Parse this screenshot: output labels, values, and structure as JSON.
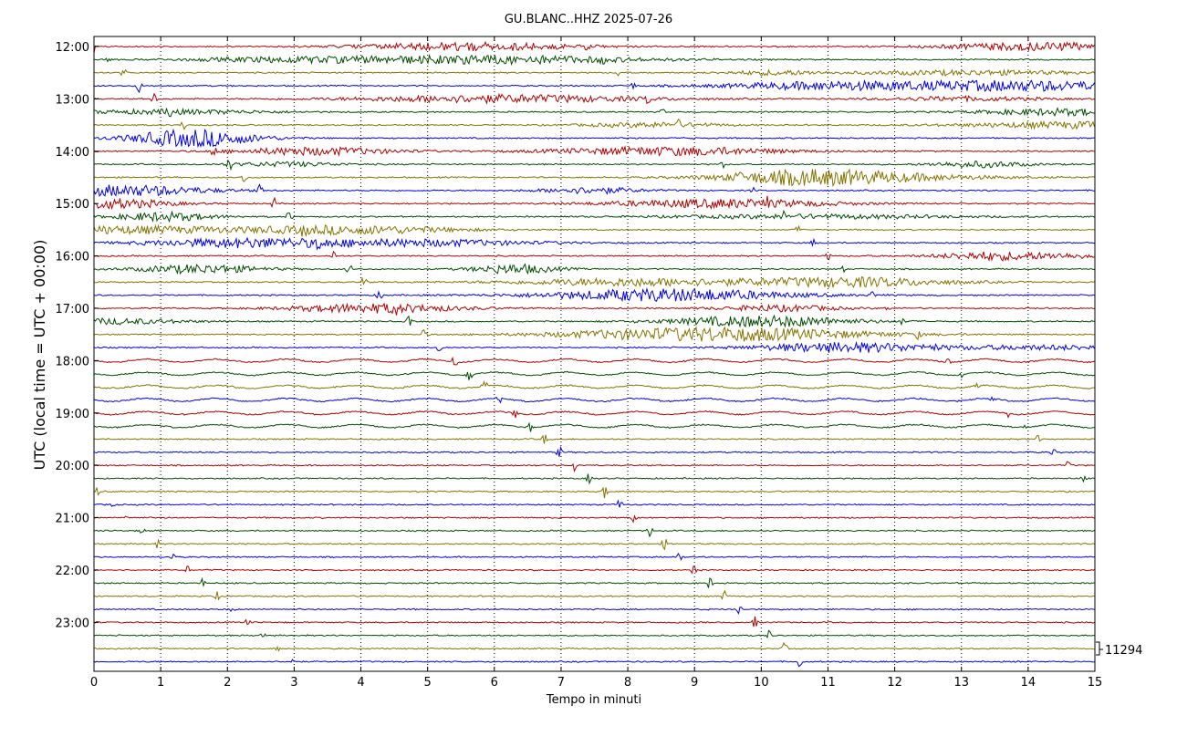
{
  "chart_data": {
    "type": "line",
    "title": "GU.BLANC..HHZ 2025-07-26",
    "xlabel": "Tempo in minuti",
    "ylabel": "UTC (local time = UTC + 00:00)",
    "xlim": [
      0,
      15
    ],
    "x_ticks": [
      "0",
      "1",
      "2",
      "3",
      "4",
      "5",
      "6",
      "7",
      "8",
      "9",
      "10",
      "11",
      "12",
      "13",
      "14",
      "15"
    ],
    "hour_labels": [
      "12:00",
      "13:00",
      "14:00",
      "15:00",
      "16:00",
      "17:00",
      "18:00",
      "19:00",
      "20:00",
      "21:00",
      "22:00",
      "23:00"
    ],
    "traces_per_hour": 4,
    "trace_colors": [
      "#b00000",
      "#004d00",
      "#857300",
      "#0000e6"
    ],
    "scale_label": "11294",
    "grid": "vertical dotted at each minute"
  }
}
